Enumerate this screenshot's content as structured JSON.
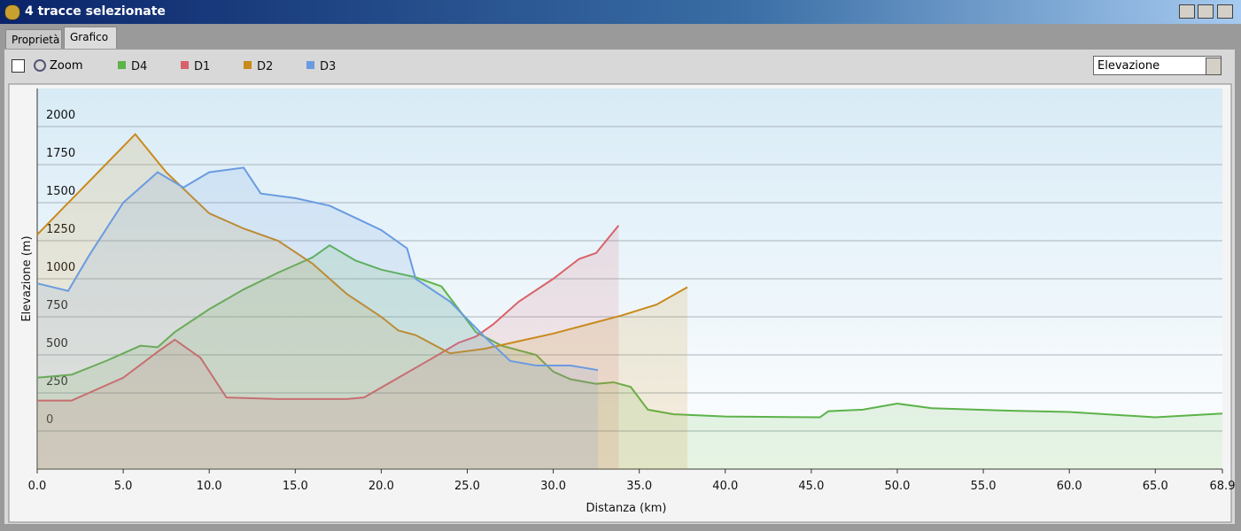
{
  "window": {
    "title": "4 tracce selezionate",
    "tabs": [
      "Proprietà",
      "Grafico"
    ],
    "zoom_label": "Zoom",
    "dropdown": "Elevazione"
  },
  "chart_data": {
    "type": "line",
    "x_label": "Distanza  (km)",
    "y_label": "Elevazione (m)",
    "xlim": [
      0,
      68.9
    ],
    "ylim": [
      -250,
      2250
    ],
    "xticks": [
      {
        "value": 0,
        "label": "0.0"
      },
      {
        "value": 5,
        "label": "5.0"
      },
      {
        "value": 10,
        "label": "10.0"
      },
      {
        "value": 15,
        "label": "15.0"
      },
      {
        "value": 20,
        "label": "20.0"
      },
      {
        "value": 25,
        "label": "25.0"
      },
      {
        "value": 30,
        "label": "30.0"
      },
      {
        "value": 35,
        "label": "35.0"
      },
      {
        "value": 40,
        "label": "40.0"
      },
      {
        "value": 45,
        "label": "45.0"
      },
      {
        "value": 50,
        "label": "50.0"
      },
      {
        "value": 55,
        "label": "55.0"
      },
      {
        "value": 60,
        "label": "60.0"
      },
      {
        "value": 65,
        "label": "65.0"
      },
      {
        "value": 68.9,
        "label": "68.9"
      }
    ],
    "yticks": [
      0,
      250,
      500,
      750,
      1000,
      1250,
      1500,
      1750,
      2000
    ],
    "grid": true,
    "series": [
      {
        "name": "D4",
        "color": "#5cb34a",
        "x": [
          0,
          2,
          4,
          6,
          7,
          8,
          10,
          12,
          14,
          16,
          17,
          18.5,
          20,
          22,
          23.5,
          25.5,
          27,
          29,
          30,
          31,
          32.5,
          33.5,
          34.5,
          35.5,
          37,
          40,
          45.5,
          46,
          48,
          50,
          52,
          56,
          60,
          65,
          68.9
        ],
        "values": [
          350,
          370,
          460,
          560,
          550,
          650,
          800,
          930,
          1040,
          1140,
          1220,
          1120,
          1060,
          1010,
          950,
          650,
          560,
          500,
          390,
          340,
          310,
          320,
          290,
          140,
          110,
          95,
          90,
          130,
          140,
          180,
          150,
          135,
          125,
          90,
          115
        ]
      },
      {
        "name": "D1",
        "color": "#d9626a",
        "x": [
          0,
          2,
          3,
          5,
          7,
          8,
          9.5,
          11,
          14,
          18,
          19,
          21,
          23,
          24.5,
          25.5,
          26.5,
          28,
          30,
          31.5,
          32.5,
          33.8
        ],
        "values": [
          200,
          200,
          250,
          350,
          520,
          600,
          480,
          220,
          210,
          210,
          220,
          350,
          480,
          580,
          620,
          700,
          850,
          1000,
          1130,
          1170,
          1350
        ]
      },
      {
        "name": "D2",
        "color": "#c98a1c",
        "x": [
          0,
          5.7,
          7.5,
          10,
          12,
          14,
          16,
          18,
          20,
          21,
          22,
          24,
          26,
          28,
          30,
          32,
          34,
          36,
          37.8
        ],
        "values": [
          1290,
          1950,
          1700,
          1430,
          1330,
          1250,
          1100,
          900,
          750,
          660,
          630,
          510,
          540,
          590,
          640,
          700,
          760,
          830,
          945
        ]
      },
      {
        "name": "D3",
        "color": "#6a9be0",
        "x": [
          0,
          1.8,
          3,
          5,
          7,
          8.5,
          10,
          12,
          13,
          15,
          17,
          18.5,
          20,
          21.5,
          22,
          24,
          26,
          27.5,
          29,
          31,
          32.6
        ],
        "values": [
          970,
          920,
          1150,
          1500,
          1700,
          1600,
          1700,
          1730,
          1560,
          1530,
          1480,
          1400,
          1320,
          1200,
          1000,
          850,
          620,
          460,
          430,
          430,
          400
        ]
      }
    ]
  }
}
